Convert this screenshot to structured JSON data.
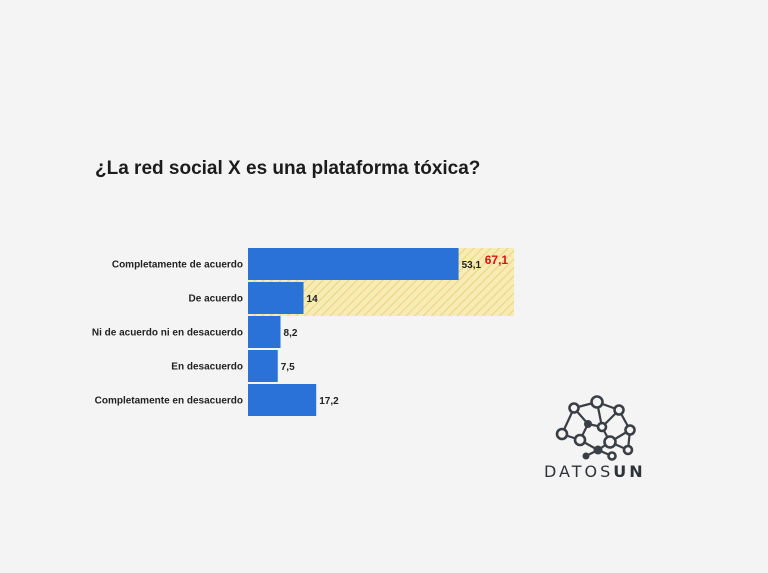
{
  "colors": {
    "bar": "#2b72d8",
    "highlight_fill": "#f8ecb5",
    "highlight_stripe": "#ecd68a",
    "sum_label": "#e01010"
  },
  "chart_data": {
    "type": "bar",
    "orientation": "horizontal",
    "title": "¿La red social X es una plataforma tóxica?",
    "categories": [
      "Completamente de acuerdo",
      "De acuerdo",
      "Ni de acuerdo ni en desacuerdo",
      "En desacuerdo",
      "Completamente en desacuerdo"
    ],
    "values": [
      53.1,
      14,
      8.2,
      7.5,
      17.2
    ],
    "value_labels": [
      "53,1",
      "14",
      "8,2",
      "7,5",
      "17,2"
    ],
    "xlim": [
      0,
      100
    ],
    "grid": false,
    "highlight": {
      "categories": [
        "Completamente de acuerdo",
        "De acuerdo"
      ],
      "value": 67.1,
      "label": "67,1"
    }
  },
  "logo": {
    "icon": "network-nodes-icon",
    "word_light": "DATOS",
    "word_bold": "UN"
  }
}
